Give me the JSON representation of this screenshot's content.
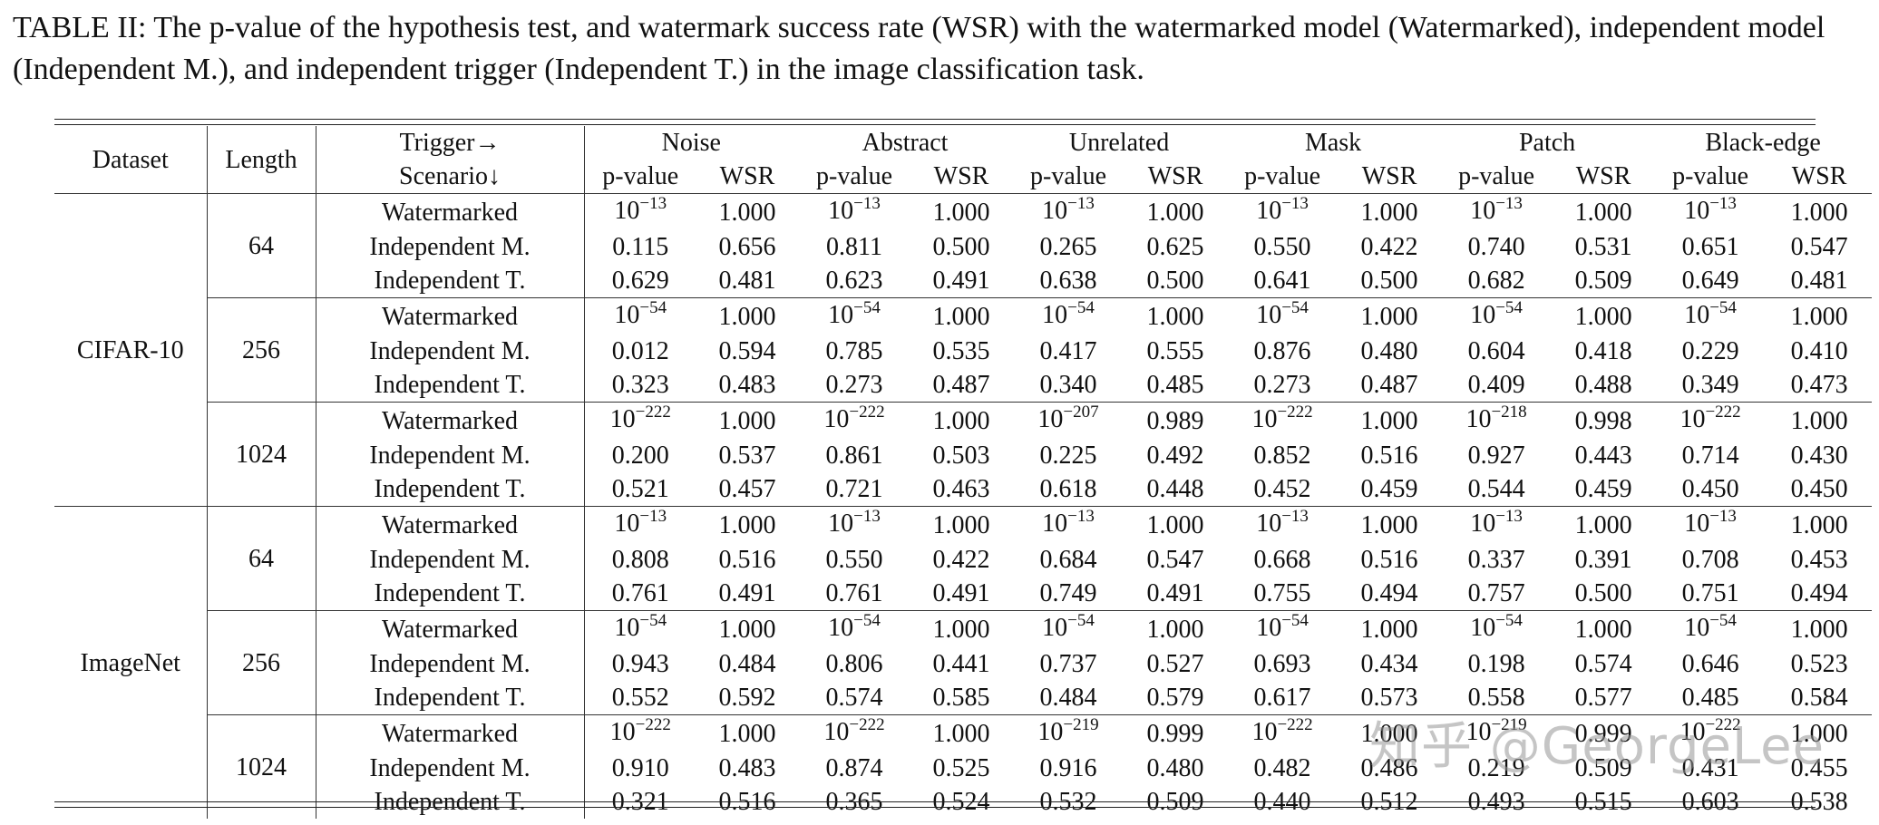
{
  "caption": "TABLE II: The p-value of the hypothesis test, and watermark success rate (WSR) with the watermarked model (Watermarked), independent model (Independent M.), and independent trigger (Independent T.) in the image classification task.",
  "header": {
    "dataset": "Dataset",
    "length": "Length",
    "trigger": "Trigger→",
    "scenario": "Scenario↓",
    "pvalue": "p-value",
    "wsr": "WSR",
    "triggers": [
      "Noise",
      "Abstract",
      "Unrelated",
      "Mask",
      "Patch",
      "Black-edge"
    ]
  },
  "datasets": [
    {
      "name": "CIFAR-10",
      "groups": [
        {
          "length": "64",
          "rows": [
            {
              "scenario": "Watermarked",
              "cells": [
                [
                  "10",
                  "−13",
                  "1.000"
                ],
                [
                  "10",
                  "−13",
                  "1.000"
                ],
                [
                  "10",
                  "−13",
                  "1.000"
                ],
                [
                  "10",
                  "−13",
                  "1.000"
                ],
                [
                  "10",
                  "−13",
                  "1.000"
                ],
                [
                  "10",
                  "−13",
                  "1.000"
                ]
              ]
            },
            {
              "scenario": "Independent M.",
              "cells": [
                [
                  "0.115",
                  "",
                  "0.656"
                ],
                [
                  "0.811",
                  "",
                  "0.500"
                ],
                [
                  "0.265",
                  "",
                  "0.625"
                ],
                [
                  "0.550",
                  "",
                  "0.422"
                ],
                [
                  "0.740",
                  "",
                  "0.531"
                ],
                [
                  "0.651",
                  "",
                  "0.547"
                ]
              ]
            },
            {
              "scenario": "Independent T.",
              "cells": [
                [
                  "0.629",
                  "",
                  "0.481"
                ],
                [
                  "0.623",
                  "",
                  "0.491"
                ],
                [
                  "0.638",
                  "",
                  "0.500"
                ],
                [
                  "0.641",
                  "",
                  "0.500"
                ],
                [
                  "0.682",
                  "",
                  "0.509"
                ],
                [
                  "0.649",
                  "",
                  "0.481"
                ]
              ]
            }
          ]
        },
        {
          "length": "256",
          "rows": [
            {
              "scenario": "Watermarked",
              "cells": [
                [
                  "10",
                  "−54",
                  "1.000"
                ],
                [
                  "10",
                  "−54",
                  "1.000"
                ],
                [
                  "10",
                  "−54",
                  "1.000"
                ],
                [
                  "10",
                  "−54",
                  "1.000"
                ],
                [
                  "10",
                  "−54",
                  "1.000"
                ],
                [
                  "10",
                  "−54",
                  "1.000"
                ]
              ]
            },
            {
              "scenario": "Independent M.",
              "cells": [
                [
                  "0.012",
                  "",
                  "0.594"
                ],
                [
                  "0.785",
                  "",
                  "0.535"
                ],
                [
                  "0.417",
                  "",
                  "0.555"
                ],
                [
                  "0.876",
                  "",
                  "0.480"
                ],
                [
                  "0.604",
                  "",
                  "0.418"
                ],
                [
                  "0.229",
                  "",
                  "0.410"
                ]
              ]
            },
            {
              "scenario": "Independent T.",
              "cells": [
                [
                  "0.323",
                  "",
                  "0.483"
                ],
                [
                  "0.273",
                  "",
                  "0.487"
                ],
                [
                  "0.340",
                  "",
                  "0.485"
                ],
                [
                  "0.273",
                  "",
                  "0.487"
                ],
                [
                  "0.409",
                  "",
                  "0.488"
                ],
                [
                  "0.349",
                  "",
                  "0.473"
                ]
              ]
            }
          ]
        },
        {
          "length": "1024",
          "rows": [
            {
              "scenario": "Watermarked",
              "cells": [
                [
                  "10",
                  "−222",
                  "1.000"
                ],
                [
                  "10",
                  "−222",
                  "1.000"
                ],
                [
                  "10",
                  "−207",
                  "0.989"
                ],
                [
                  "10",
                  "−222",
                  "1.000"
                ],
                [
                  "10",
                  "−218",
                  "0.998"
                ],
                [
                  "10",
                  "−222",
                  "1.000"
                ]
              ]
            },
            {
              "scenario": "Independent M.",
              "cells": [
                [
                  "0.200",
                  "",
                  "0.537"
                ],
                [
                  "0.861",
                  "",
                  "0.503"
                ],
                [
                  "0.225",
                  "",
                  "0.492"
                ],
                [
                  "0.852",
                  "",
                  "0.516"
                ],
                [
                  "0.927",
                  "",
                  "0.443"
                ],
                [
                  "0.714",
                  "",
                  "0.430"
                ]
              ]
            },
            {
              "scenario": "Independent T.",
              "cells": [
                [
                  "0.521",
                  "",
                  "0.457"
                ],
                [
                  "0.721",
                  "",
                  "0.463"
                ],
                [
                  "0.618",
                  "",
                  "0.448"
                ],
                [
                  "0.452",
                  "",
                  "0.459"
                ],
                [
                  "0.544",
                  "",
                  "0.459"
                ],
                [
                  "0.450",
                  "",
                  "0.450"
                ]
              ]
            }
          ]
        }
      ]
    },
    {
      "name": "ImageNet",
      "groups": [
        {
          "length": "64",
          "rows": [
            {
              "scenario": "Watermarked",
              "cells": [
                [
                  "10",
                  "−13",
                  "1.000"
                ],
                [
                  "10",
                  "−13",
                  "1.000"
                ],
                [
                  "10",
                  "−13",
                  "1.000"
                ],
                [
                  "10",
                  "−13",
                  "1.000"
                ],
                [
                  "10",
                  "−13",
                  "1.000"
                ],
                [
                  "10",
                  "−13",
                  "1.000"
                ]
              ]
            },
            {
              "scenario": "Independent M.",
              "cells": [
                [
                  "0.808",
                  "",
                  "0.516"
                ],
                [
                  "0.550",
                  "",
                  "0.422"
                ],
                [
                  "0.684",
                  "",
                  "0.547"
                ],
                [
                  "0.668",
                  "",
                  "0.516"
                ],
                [
                  "0.337",
                  "",
                  "0.391"
                ],
                [
                  "0.708",
                  "",
                  "0.453"
                ]
              ]
            },
            {
              "scenario": "Independent T.",
              "cells": [
                [
                  "0.761",
                  "",
                  "0.491"
                ],
                [
                  "0.761",
                  "",
                  "0.491"
                ],
                [
                  "0.749",
                  "",
                  "0.491"
                ],
                [
                  "0.755",
                  "",
                  "0.494"
                ],
                [
                  "0.757",
                  "",
                  "0.500"
                ],
                [
                  "0.751",
                  "",
                  "0.494"
                ]
              ]
            }
          ]
        },
        {
          "length": "256",
          "rows": [
            {
              "scenario": "Watermarked",
              "cells": [
                [
                  "10",
                  "−54",
                  "1.000"
                ],
                [
                  "10",
                  "−54",
                  "1.000"
                ],
                [
                  "10",
                  "−54",
                  "1.000"
                ],
                [
                  "10",
                  "−54",
                  "1.000"
                ],
                [
                  "10",
                  "−54",
                  "1.000"
                ],
                [
                  "10",
                  "−54",
                  "1.000"
                ]
              ]
            },
            {
              "scenario": "Independent M.",
              "cells": [
                [
                  "0.943",
                  "",
                  "0.484"
                ],
                [
                  "0.806",
                  "",
                  "0.441"
                ],
                [
                  "0.737",
                  "",
                  "0.527"
                ],
                [
                  "0.693",
                  "",
                  "0.434"
                ],
                [
                  "0.198",
                  "",
                  "0.574"
                ],
                [
                  "0.646",
                  "",
                  "0.523"
                ]
              ]
            },
            {
              "scenario": "Independent T.",
              "cells": [
                [
                  "0.552",
                  "",
                  "0.592"
                ],
                [
                  "0.574",
                  "",
                  "0.585"
                ],
                [
                  "0.484",
                  "",
                  "0.579"
                ],
                [
                  "0.617",
                  "",
                  "0.573"
                ],
                [
                  "0.558",
                  "",
                  "0.577"
                ],
                [
                  "0.485",
                  "",
                  "0.584"
                ]
              ]
            }
          ]
        },
        {
          "length": "1024",
          "rows": [
            {
              "scenario": "Watermarked",
              "cells": [
                [
                  "10",
                  "−222",
                  "1.000"
                ],
                [
                  "10",
                  "−222",
                  "1.000"
                ],
                [
                  "10",
                  "−219",
                  "0.999"
                ],
                [
                  "10",
                  "−222",
                  "1.000"
                ],
                [
                  "10",
                  "−219",
                  "0.999"
                ],
                [
                  "10",
                  "−222",
                  "1.000"
                ]
              ]
            },
            {
              "scenario": "Independent M.",
              "cells": [
                [
                  "0.910",
                  "",
                  "0.483"
                ],
                [
                  "0.874",
                  "",
                  "0.525"
                ],
                [
                  "0.916",
                  "",
                  "0.480"
                ],
                [
                  "0.482",
                  "",
                  "0.486"
                ],
                [
                  "0.219",
                  "",
                  "0.509"
                ],
                [
                  "0.431",
                  "",
                  "0.455"
                ]
              ]
            },
            {
              "scenario": "Independent T.",
              "cells": [
                [
                  "0.321",
                  "",
                  "0.516"
                ],
                [
                  "0.365",
                  "",
                  "0.524"
                ],
                [
                  "0.532",
                  "",
                  "0.509"
                ],
                [
                  "0.440",
                  "",
                  "0.512"
                ],
                [
                  "0.493",
                  "",
                  "0.515"
                ],
                [
                  "0.603",
                  "",
                  "0.538"
                ]
              ]
            }
          ]
        }
      ]
    }
  ],
  "watermark": "知乎 @GeorgeLee"
}
